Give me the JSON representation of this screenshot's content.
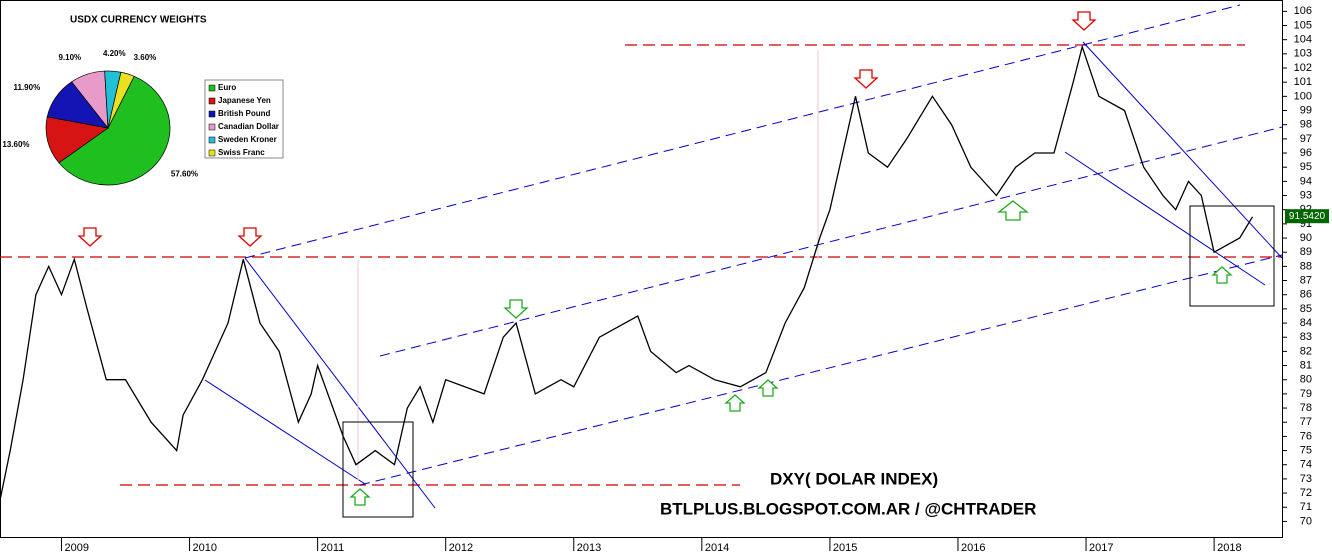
{
  "chart_data": [
    {
      "type": "line",
      "title": "DXY( DOLAR INDEX)",
      "subtitle": "BTLPLUS.BLOGSPOT.COM.AR / @CHTRADER",
      "color": "#000000",
      "x": [
        2008.52,
        2008.6,
        2008.7,
        2008.8,
        2008.9,
        2009.0,
        2009.1,
        2009.2,
        2009.35,
        2009.5,
        2009.7,
        2009.9,
        2009.95,
        2010.1,
        2010.3,
        2010.42,
        2010.55,
        2010.7,
        2010.85,
        2010.95,
        2011.0,
        2011.2,
        2011.3,
        2011.45,
        2011.6,
        2011.7,
        2011.8,
        2011.9,
        2012.0,
        2012.3,
        2012.45,
        2012.55,
        2012.7,
        2012.9,
        2013.0,
        2013.2,
        2013.5,
        2013.6,
        2013.8,
        2013.9,
        2014.1,
        2014.3,
        2014.5,
        2014.65,
        2014.8,
        2014.92,
        2015.0,
        2015.1,
        2015.2,
        2015.3,
        2015.45,
        2015.6,
        2015.8,
        2015.95,
        2016.1,
        2016.3,
        2016.45,
        2016.6,
        2016.75,
        2016.9,
        2016.97,
        2017.1,
        2017.3,
        2017.45,
        2017.6,
        2017.7,
        2017.8,
        2017.9,
        2018.0,
        2018.1,
        2018.2,
        2018.3
      ],
      "values": [
        71.5,
        75,
        80,
        86,
        88,
        86,
        88.5,
        85,
        80,
        80,
        77,
        75,
        77.5,
        80,
        84,
        88.5,
        84,
        82,
        77,
        79,
        81,
        76,
        74,
        75,
        74,
        78,
        79.5,
        77,
        80,
        79,
        83,
        84,
        79,
        80,
        79.5,
        83,
        84.5,
        82,
        80.5,
        81,
        80,
        79.5,
        80.5,
        84,
        86.5,
        90,
        92,
        96,
        100,
        96,
        95,
        97,
        100,
        98,
        95,
        93,
        95,
        96,
        96,
        101,
        103.5,
        100,
        99,
        95,
        93,
        92,
        94,
        93,
        89,
        89.5,
        90,
        91.5
      ],
      "last_price": {
        "value": 91.542,
        "label": "91.5420"
      },
      "xlim": [
        2008.52,
        2018.53
      ],
      "xticks": [
        2009,
        2010,
        2011,
        2012,
        2013,
        2014,
        2015,
        2016,
        2017,
        2018
      ],
      "ylim": [
        68.9,
        106.8
      ],
      "yticks": [
        70,
        71,
        72,
        73,
        74,
        75,
        76,
        77,
        78,
        79,
        80,
        81,
        82,
        83,
        84,
        85,
        86,
        87,
        88,
        89,
        90,
        91,
        92,
        93,
        94,
        95,
        96,
        97,
        98,
        99,
        100,
        101,
        102,
        103,
        104,
        105,
        106
      ]
    },
    {
      "type": "pie",
      "title": "USDX CURRENCY WEIGHTS",
      "categories": [
        "Euro",
        "Japanese Yen",
        "British Pound",
        "Canadian Dollar",
        "Sweden Kroner",
        "Swiss Franc"
      ],
      "values": [
        57.6,
        13.6,
        11.9,
        9.1,
        4.2,
        3.6
      ],
      "value_labels": [
        "57.60%",
        "13.60%",
        "11.90%",
        "9.10%",
        "4.20%",
        "3.60%"
      ],
      "colors": [
        "#1fbf1f",
        "#d61414",
        "#1414b4",
        "#e89ac8",
        "#20c0d8",
        "#e8e020"
      ]
    }
  ]
}
